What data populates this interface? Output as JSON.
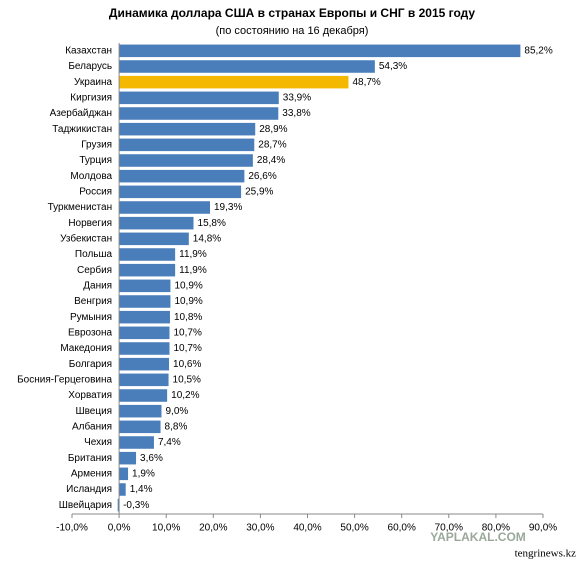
{
  "chart_data": {
    "type": "barh",
    "title": "Динамика доллара США в странах Европы и СНГ в 2015 году",
    "subtitle": "(по состоянию на 16 декабря)",
    "categories": [
      "Казахстан",
      "Беларусь",
      "Украина",
      "Киргизия",
      "Азербайджан",
      "Таджикистан",
      "Грузия",
      "Турция",
      "Молдова",
      "Россия",
      "Туркменистан",
      "Норвегия",
      "Узбекистан",
      "Польша",
      "Сербия",
      "Дания",
      "Венгрия",
      "Румыния",
      "Еврозона",
      "Македония",
      "Болгария",
      "Босния-Герцеговина",
      "Хорватия",
      "Швеция",
      "Албания",
      "Чехия",
      "Британия",
      "Армения",
      "Исландия",
      "Швейцария"
    ],
    "values": [
      85.2,
      54.3,
      48.7,
      33.9,
      33.8,
      28.9,
      28.7,
      28.4,
      26.6,
      25.9,
      19.3,
      15.8,
      14.8,
      11.9,
      11.9,
      10.9,
      10.9,
      10.8,
      10.7,
      10.7,
      10.6,
      10.5,
      10.2,
      9.0,
      8.8,
      7.4,
      3.6,
      1.9,
      1.4,
      -0.3
    ],
    "value_labels": [
      "85,2%",
      "54,3%",
      "48,7%",
      "33,9%",
      "33,8%",
      "28,9%",
      "28,7%",
      "28,4%",
      "26,6%",
      "25,9%",
      "19,3%",
      "15,8%",
      "14,8%",
      "11,9%",
      "11,9%",
      "10,9%",
      "10,9%",
      "10,8%",
      "10,7%",
      "10,7%",
      "10,6%",
      "10,5%",
      "10,2%",
      "9,0%",
      "8,8%",
      "7,4%",
      "3,6%",
      "1,9%",
      "1,4%",
      "-0,3%"
    ],
    "colors": [
      "#4a7ebb",
      "#4a7ebb",
      "#f5b800",
      "#4a7ebb",
      "#4a7ebb",
      "#4a7ebb",
      "#4a7ebb",
      "#4a7ebb",
      "#4a7ebb",
      "#4a7ebb",
      "#4a7ebb",
      "#4a7ebb",
      "#4a7ebb",
      "#4a7ebb",
      "#4a7ebb",
      "#4a7ebb",
      "#4a7ebb",
      "#4a7ebb",
      "#4a7ebb",
      "#4a7ebb",
      "#4a7ebb",
      "#4a7ebb",
      "#4a7ebb",
      "#4a7ebb",
      "#4a7ebb",
      "#4a7ebb",
      "#4a7ebb",
      "#4a7ebb",
      "#4a7ebb",
      "#4a7ebb"
    ],
    "xlim": [
      -10,
      90
    ],
    "xticks": [
      {
        "value": -10,
        "label": "-10,0%"
      },
      {
        "value": 0,
        "label": "0,0%"
      },
      {
        "value": 10,
        "label": "10,0%"
      },
      {
        "value": 20,
        "label": "20,0%"
      },
      {
        "value": 30,
        "label": "30,0%"
      },
      {
        "value": 40,
        "label": "40,0%"
      },
      {
        "value": 50,
        "label": "50,0%"
      },
      {
        "value": 60,
        "label": "60,0%"
      },
      {
        "value": 70,
        "label": "70,0%"
      },
      {
        "value": 80,
        "label": "80,0%"
      },
      {
        "value": 90,
        "label": "90,0%"
      }
    ],
    "annotations": [
      "YAPLAKAL.COM",
      "tengrinews.kz"
    ]
  }
}
